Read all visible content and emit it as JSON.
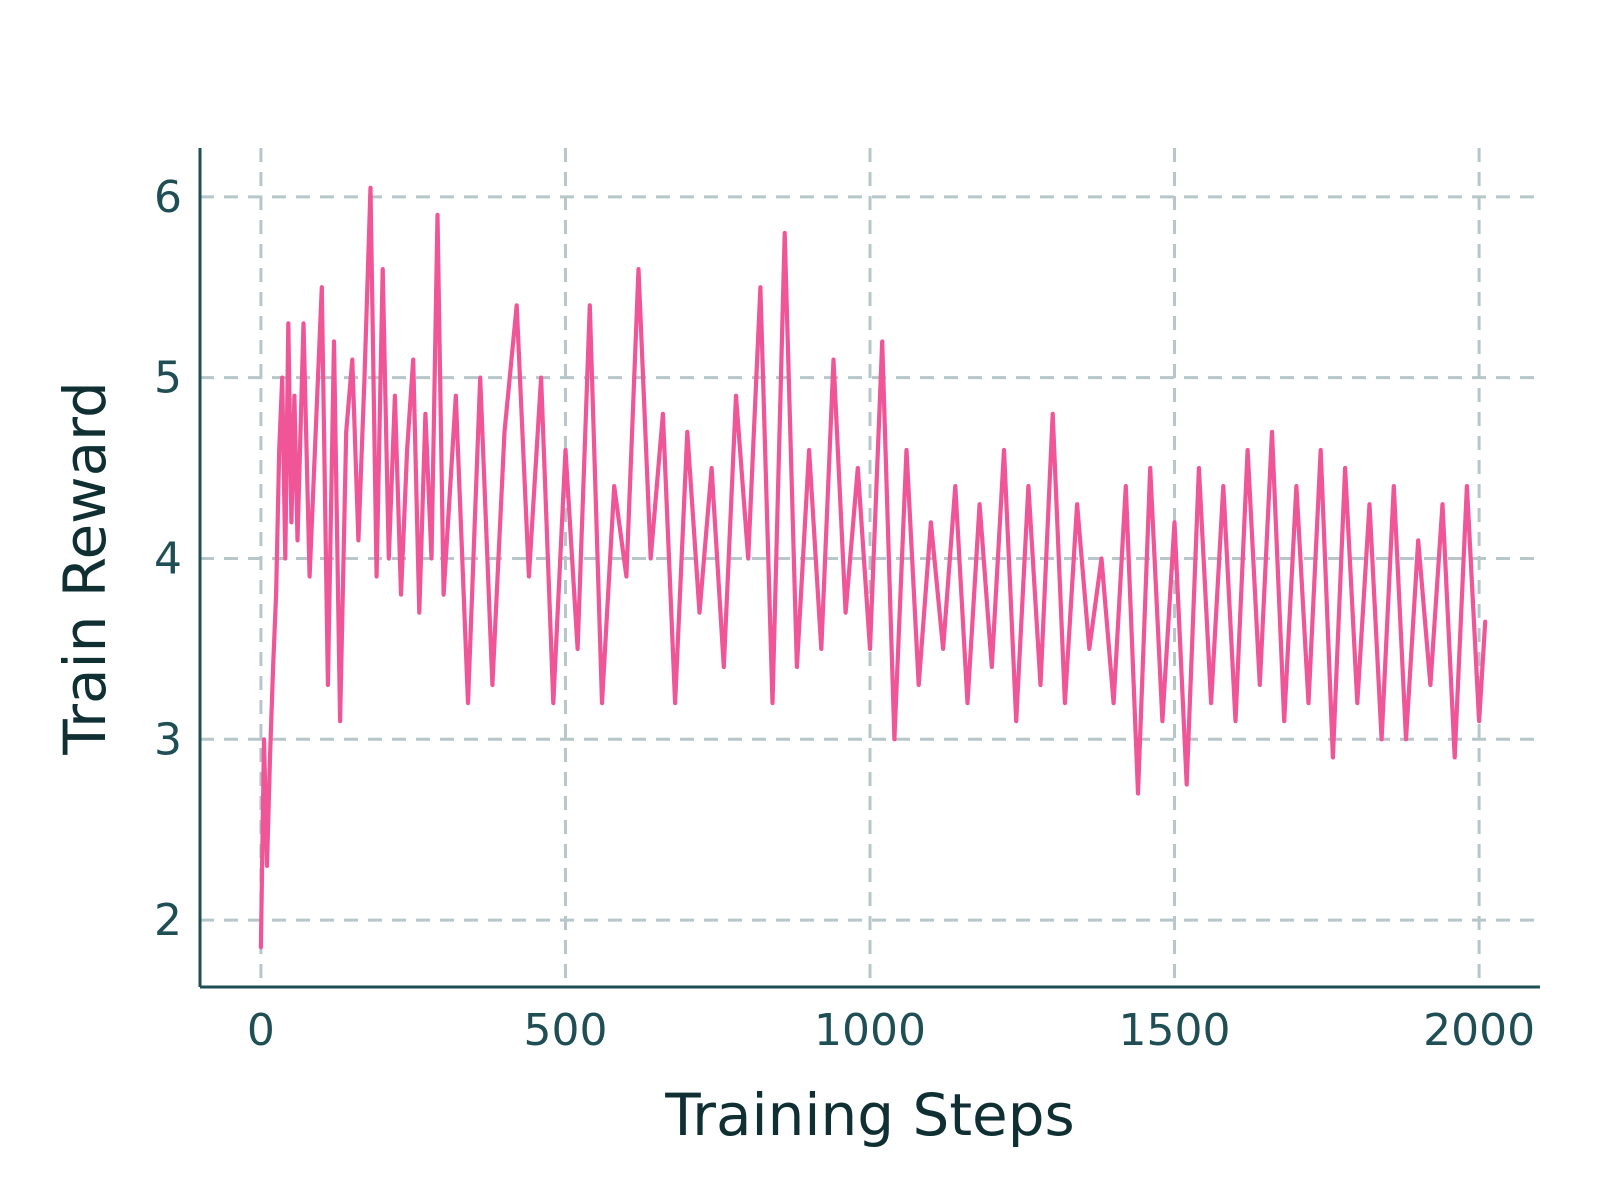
{
  "chart_data": {
    "type": "line",
    "title": "",
    "xlabel": "Training Steps",
    "ylabel": "Train Reward",
    "xlim": [
      -100,
      2100
    ],
    "ylim": [
      1.63,
      6.27
    ],
    "xticks": [
      0,
      500,
      1000,
      1500,
      2000
    ],
    "xtick_labels": [
      "0",
      "500",
      "1000",
      "1500",
      "2000"
    ],
    "yticks": [
      2,
      3,
      4,
      5,
      6
    ],
    "ytick_labels": [
      "2",
      "3",
      "4",
      "5",
      "6"
    ],
    "grid": true,
    "legend": "none",
    "colors": {
      "series": "#ef5597",
      "axis": "#1f4f55",
      "grid": "#b7c6ca",
      "text": "#1f4f55"
    },
    "series": [
      {
        "x": [
          0,
          5,
          10,
          15,
          20,
          25,
          30,
          35,
          40,
          45,
          50,
          55,
          60,
          70,
          80,
          90,
          100,
          110,
          120,
          130,
          140,
          150,
          160,
          170,
          180,
          190,
          200,
          210,
          220,
          230,
          240,
          250,
          260,
          270,
          280,
          290,
          300,
          320,
          340,
          360,
          380,
          400,
          420,
          440,
          460,
          480,
          500,
          520,
          540,
          560,
          580,
          600,
          620,
          640,
          660,
          680,
          700,
          720,
          740,
          760,
          780,
          800,
          820,
          840,
          860,
          880,
          900,
          920,
          940,
          960,
          980,
          1000,
          1020,
          1040,
          1060,
          1080,
          1100,
          1120,
          1140,
          1160,
          1180,
          1200,
          1220,
          1240,
          1260,
          1280,
          1300,
          1320,
          1340,
          1360,
          1380,
          1400,
          1420,
          1440,
          1460,
          1480,
          1500,
          1520,
          1540,
          1560,
          1580,
          1600,
          1620,
          1640,
          1660,
          1680,
          1700,
          1720,
          1740,
          1760,
          1780,
          1800,
          1820,
          1840,
          1860,
          1880,
          1900,
          1920,
          1940,
          1960,
          1980,
          2000,
          2010
        ],
        "y": [
          1.85,
          3.0,
          2.3,
          2.9,
          3.4,
          3.8,
          4.6,
          5.0,
          4.0,
          5.3,
          4.2,
          4.9,
          4.1,
          5.3,
          3.9,
          4.7,
          5.5,
          3.3,
          5.2,
          3.1,
          4.7,
          5.1,
          4.1,
          5.0,
          6.05,
          3.9,
          5.6,
          4.0,
          4.9,
          3.8,
          4.6,
          5.1,
          3.7,
          4.8,
          4.0,
          5.9,
          3.8,
          4.9,
          3.2,
          5.0,
          3.3,
          4.7,
          5.4,
          3.9,
          5.0,
          3.2,
          4.6,
          3.5,
          5.4,
          3.2,
          4.4,
          3.9,
          5.6,
          4.0,
          4.8,
          3.2,
          4.7,
          3.7,
          4.5,
          3.4,
          4.9,
          4.0,
          5.5,
          3.2,
          5.8,
          3.4,
          4.6,
          3.5,
          5.1,
          3.7,
          4.5,
          3.5,
          5.2,
          3.0,
          4.6,
          3.3,
          4.2,
          3.5,
          4.4,
          3.2,
          4.3,
          3.4,
          4.6,
          3.1,
          4.4,
          3.3,
          4.8,
          3.2,
          4.3,
          3.5,
          4.0,
          3.2,
          4.4,
          2.7,
          4.5,
          3.1,
          4.2,
          2.75,
          4.5,
          3.2,
          4.4,
          3.1,
          4.6,
          3.3,
          4.7,
          3.1,
          4.4,
          3.2,
          4.6,
          2.9,
          4.5,
          3.2,
          4.3,
          3.0,
          4.4,
          3.0,
          4.1,
          3.3,
          4.3,
          2.9,
          4.4,
          3.1,
          3.65
        ]
      }
    ]
  }
}
